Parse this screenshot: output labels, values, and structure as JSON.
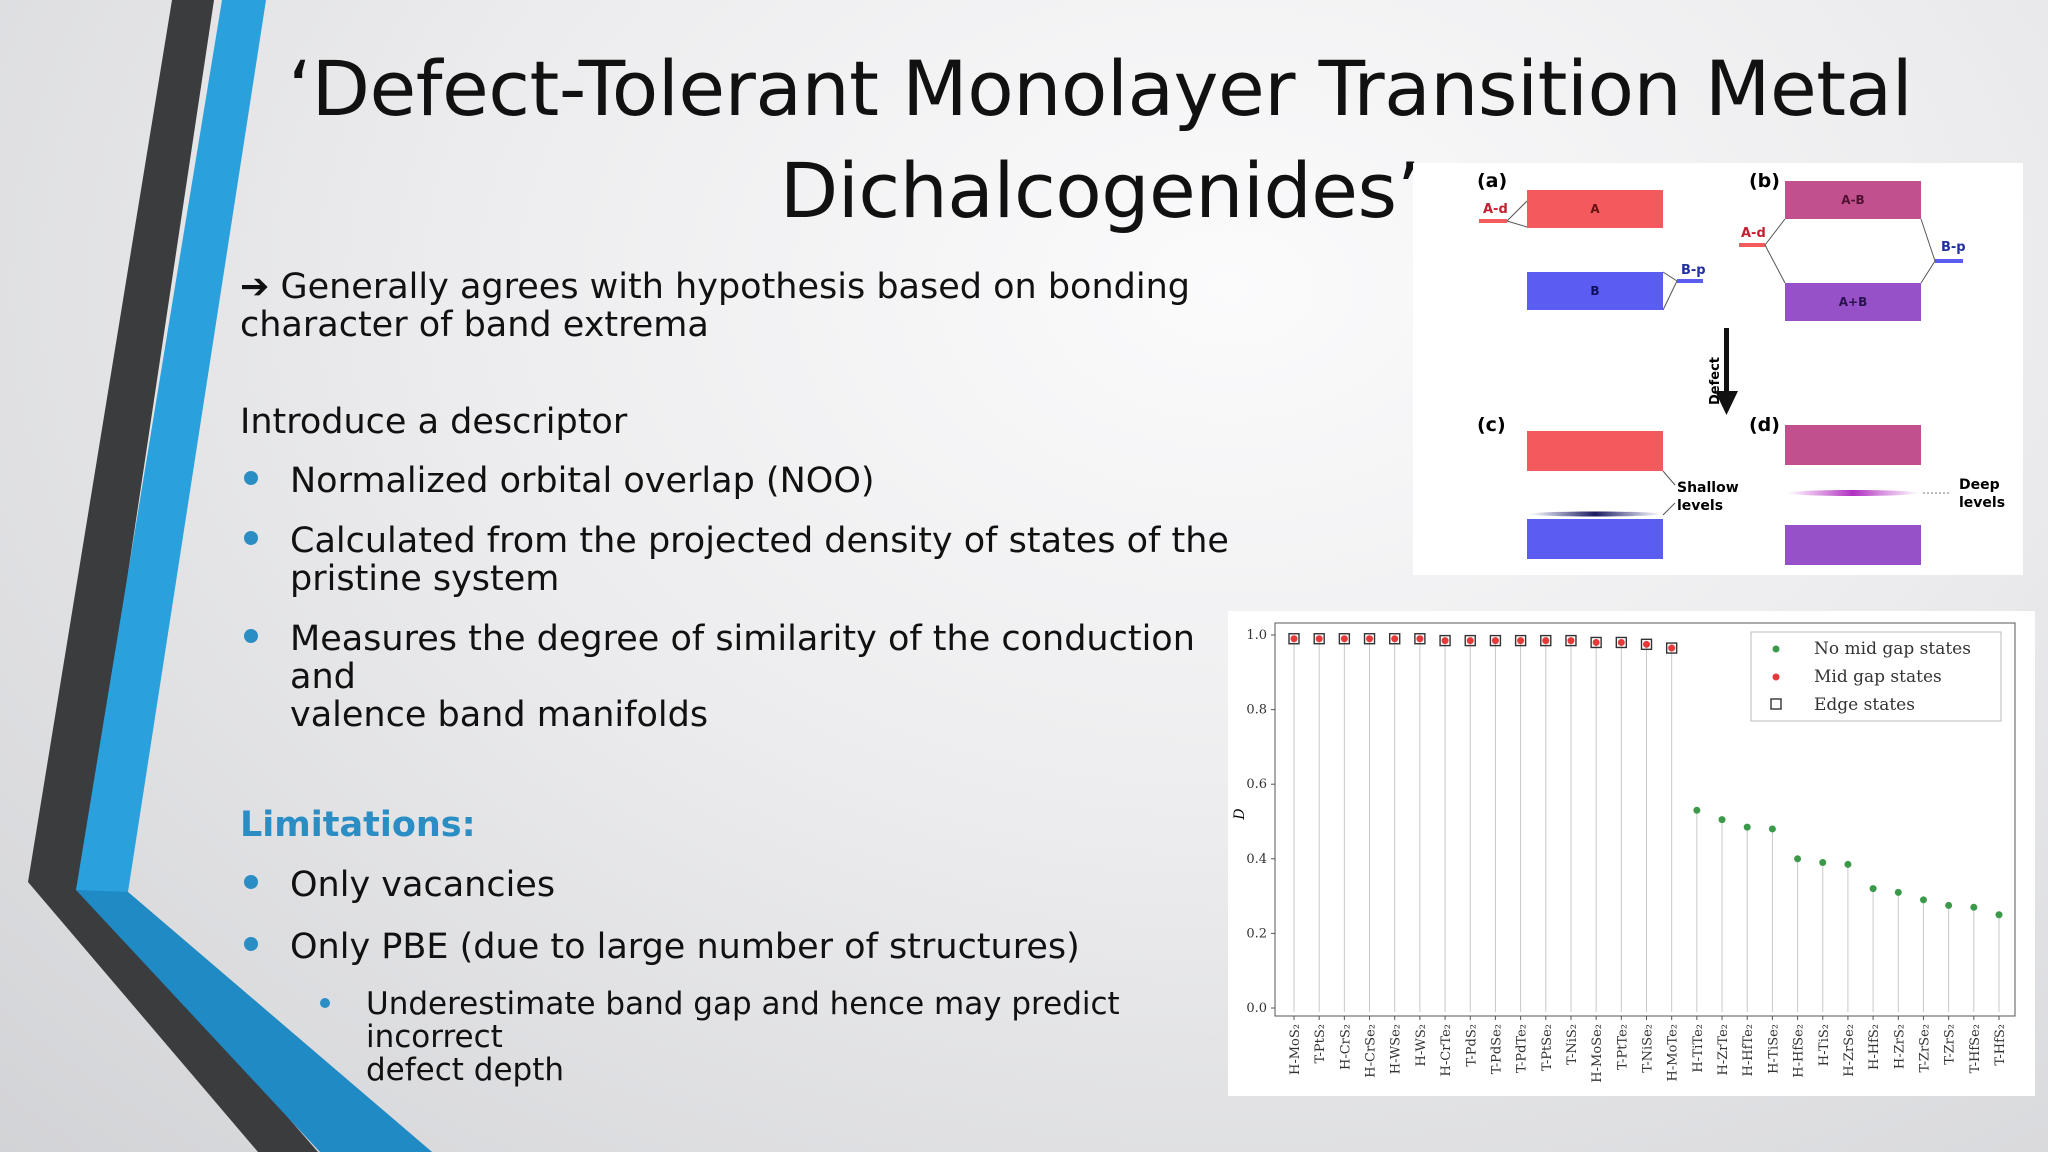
{
  "slide": {
    "title_lines": [
      "‘Defect-Tolerant Monolayer Transition Metal",
      "Dichalcogenides’"
    ],
    "arrow_point": {
      "icon": "right-arrow-icon",
      "lines": [
        "Generally agrees with hypothesis based on bonding",
        "character of band extrema"
      ]
    },
    "descriptor_intro": "Introduce a descriptor",
    "descriptor_bullets": [
      {
        "lines": [
          "Normalized orbital overlap (NOO)"
        ]
      },
      {
        "lines": [
          "Calculated from the projected density of states of the",
          "pristine system"
        ]
      },
      {
        "lines": [
          "Measures the degree of similarity of the conduction and",
          "valence band manifolds"
        ]
      }
    ],
    "limitations_heading": "Limitations:",
    "limitation_bullets": [
      {
        "text": "Only vacancies"
      },
      {
        "text": "Only PBE (due to large number of structures)"
      }
    ],
    "sub_bullet_lines": [
      "Underestimate band gap and hence may predict incorrect",
      "defect depth"
    ],
    "colors": {
      "accent_blue": "#2a8ec5",
      "stripe_light_blue": "#2aa0dc",
      "stripe_dark": "#3b3c3e"
    }
  },
  "diagram": {
    "panel_labels": [
      "(a)",
      "(b)",
      "(c)",
      "(d)"
    ],
    "labels": {
      "a_d": "A-d",
      "A": "A",
      "B_p": "B-p",
      "B": "B",
      "b_AminusB": "A-B",
      "b_Ad": "A-d",
      "b_Bp": "B-p",
      "b_AplusB": "A+B",
      "defect": "Defect",
      "shallow": "Shallow",
      "levels1": "levels",
      "deep": "Deep",
      "levels2": "levels"
    },
    "colors": {
      "red": "#f25a5e",
      "blue": "#5a5cf2",
      "violet": "#c0508e",
      "purple": "#9650c8"
    }
  },
  "chart_data": {
    "type": "scatter",
    "ylabel": "D",
    "xlabel": "",
    "ylim": [
      0.0,
      1.0
    ],
    "yticks": [
      "0.0",
      "0.2",
      "0.4",
      "0.6",
      "0.8",
      "1.0"
    ],
    "grid": false,
    "legend_position": "top-right",
    "legend": [
      {
        "name": "No mid gap states",
        "marker": "green-dot"
      },
      {
        "name": "Mid gap states",
        "marker": "red-dot"
      },
      {
        "name": "Edge states",
        "marker": "open-square"
      }
    ],
    "categories": [
      "H-MoS2",
      "T-PtS2",
      "H-CrS2",
      "H-CrSe2",
      "H-WSe2",
      "H-WS2",
      "H-CrTe2",
      "T-PdS2",
      "T-PdSe2",
      "T-PdTe2",
      "T-PtSe2",
      "T-NiS2",
      "H-MoSe2",
      "T-PtTe2",
      "T-NiSe2",
      "H-MoTe2",
      "H-TiTe2",
      "H-ZrTe2",
      "H-HfTe2",
      "H-TiSe2",
      "H-HfSe2",
      "H-TiS2",
      "H-ZrSe2",
      "H-HfS2",
      "H-ZrS2",
      "T-ZrSe2",
      "T-ZrS2",
      "T-HfSe2",
      "T-HfS2"
    ],
    "tick_labels": [
      "H-MoS₂",
      "T-PtS₂",
      "H-CrS₂",
      "H-CrSe₂",
      "H-WSe₂",
      "H-WS₂",
      "H-CrTe₂",
      "T-PdS₂",
      "T-PdSe₂",
      "T-PdTe₂",
      "T-PtSe₂",
      "T-NiS₂",
      "H-MoSe₂",
      "T-PtTe₂",
      "T-NiSe₂",
      "H-MoTe₂",
      "H-TiTe₂",
      "H-ZrTe₂",
      "H-HfTe₂",
      "H-TiSe₂",
      "H-HfSe₂",
      "H-TiS₂",
      "H-ZrSe₂",
      "H-HfS₂",
      "H-ZrS₂",
      "T-ZrSe₂",
      "T-ZrS₂",
      "T-HfSe₂",
      "T-HfS₂"
    ],
    "values": [
      0.99,
      0.99,
      0.99,
      0.99,
      0.99,
      0.99,
      0.985,
      0.985,
      0.985,
      0.985,
      0.985,
      0.985,
      0.98,
      0.98,
      0.975,
      0.965,
      0.53,
      0.505,
      0.485,
      0.48,
      0.4,
      0.39,
      0.385,
      0.32,
      0.31,
      0.29,
      0.275,
      0.27,
      0.25
    ],
    "point_type": [
      "mid_gap_edge",
      "mid_gap_edge",
      "mid_gap_edge",
      "mid_gap_edge",
      "mid_gap_edge",
      "mid_gap_edge",
      "mid_gap_edge",
      "mid_gap_edge",
      "mid_gap_edge",
      "mid_gap_edge",
      "mid_gap_edge",
      "mid_gap_edge",
      "mid_gap_edge",
      "mid_gap_edge",
      "mid_gap_edge",
      "mid_gap_edge",
      "no_mid_gap",
      "no_mid_gap",
      "no_mid_gap",
      "no_mid_gap",
      "no_mid_gap",
      "no_mid_gap",
      "no_mid_gap",
      "no_mid_gap",
      "no_mid_gap",
      "no_mid_gap",
      "no_mid_gap",
      "no_mid_gap",
      "no_mid_gap"
    ],
    "colors": {
      "no_mid_gap": "#3a9a4a",
      "mid_gap": "#e43a3a",
      "edge": "#333333"
    }
  }
}
